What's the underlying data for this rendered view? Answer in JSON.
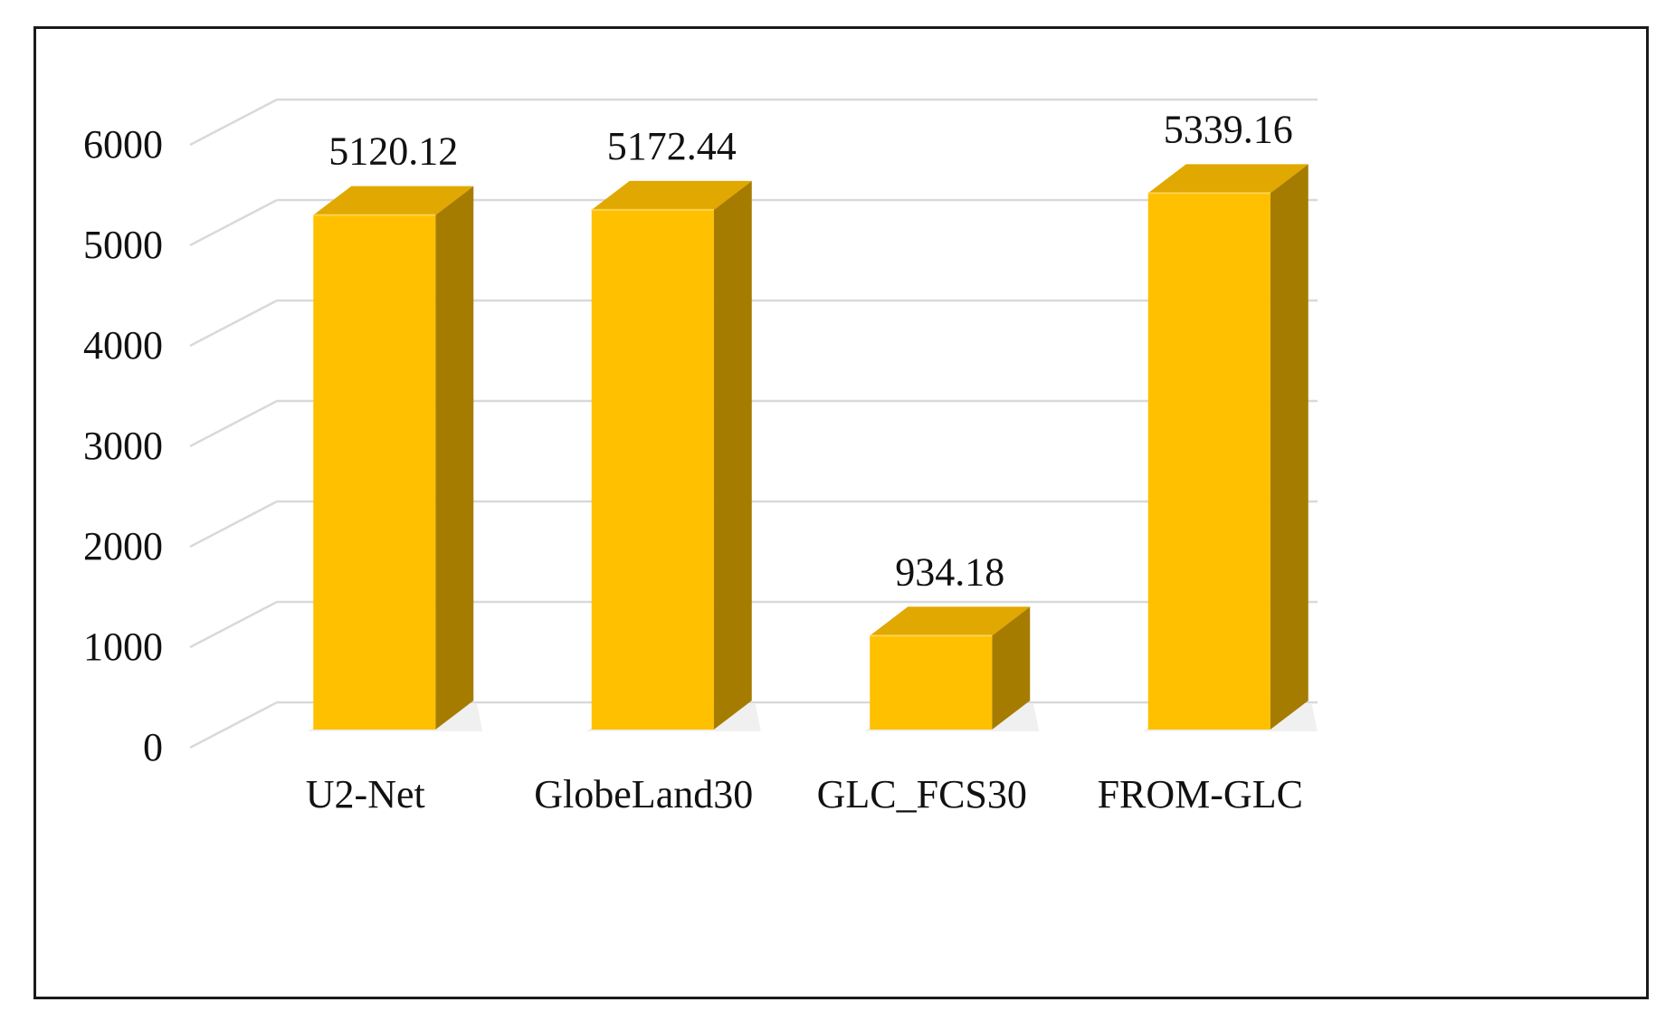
{
  "chart_data": {
    "type": "bar",
    "title": "",
    "xlabel": "",
    "ylabel": "",
    "categories": [
      "U2-Net",
      "GlobeLand30",
      "GLC_FCS30",
      "FROM-GLC"
    ],
    "values": [
      5120.12,
      5172.44,
      934.18,
      5339.16
    ],
    "value_labels": [
      "5120.12",
      "5172.44",
      "934.18",
      "5339.16"
    ],
    "ylim": [
      0,
      6000
    ],
    "yticks": [
      "0",
      "1000",
      "2000",
      "3000",
      "4000",
      "5000",
      "6000"
    ],
    "ytick_values": [
      0,
      1000,
      2000,
      3000,
      4000,
      5000,
      6000
    ],
    "grid": true,
    "style": "3d-column",
    "colors": {
      "bar_front": "#FFC000",
      "bar_top": "#E0A800",
      "bar_side": "#A67C00",
      "gridline": "#D9D9D9",
      "frame": "#1A1A1A",
      "text": "#111111"
    }
  }
}
